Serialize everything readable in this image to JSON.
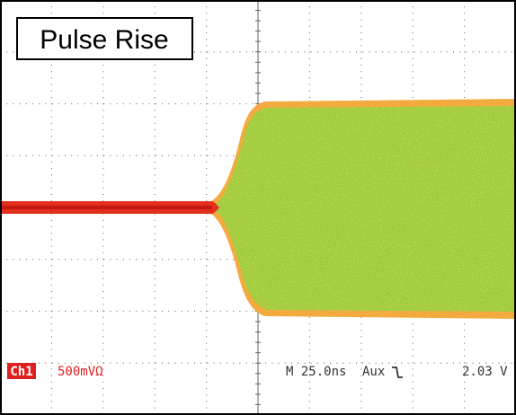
{
  "title": "Pulse Rise",
  "status": {
    "channel": "Ch1",
    "scale": "500mVΩ",
    "timebase": "M 25.0ns",
    "trigger_source": "Aux",
    "trigger_level": "2.03 V"
  }
}
